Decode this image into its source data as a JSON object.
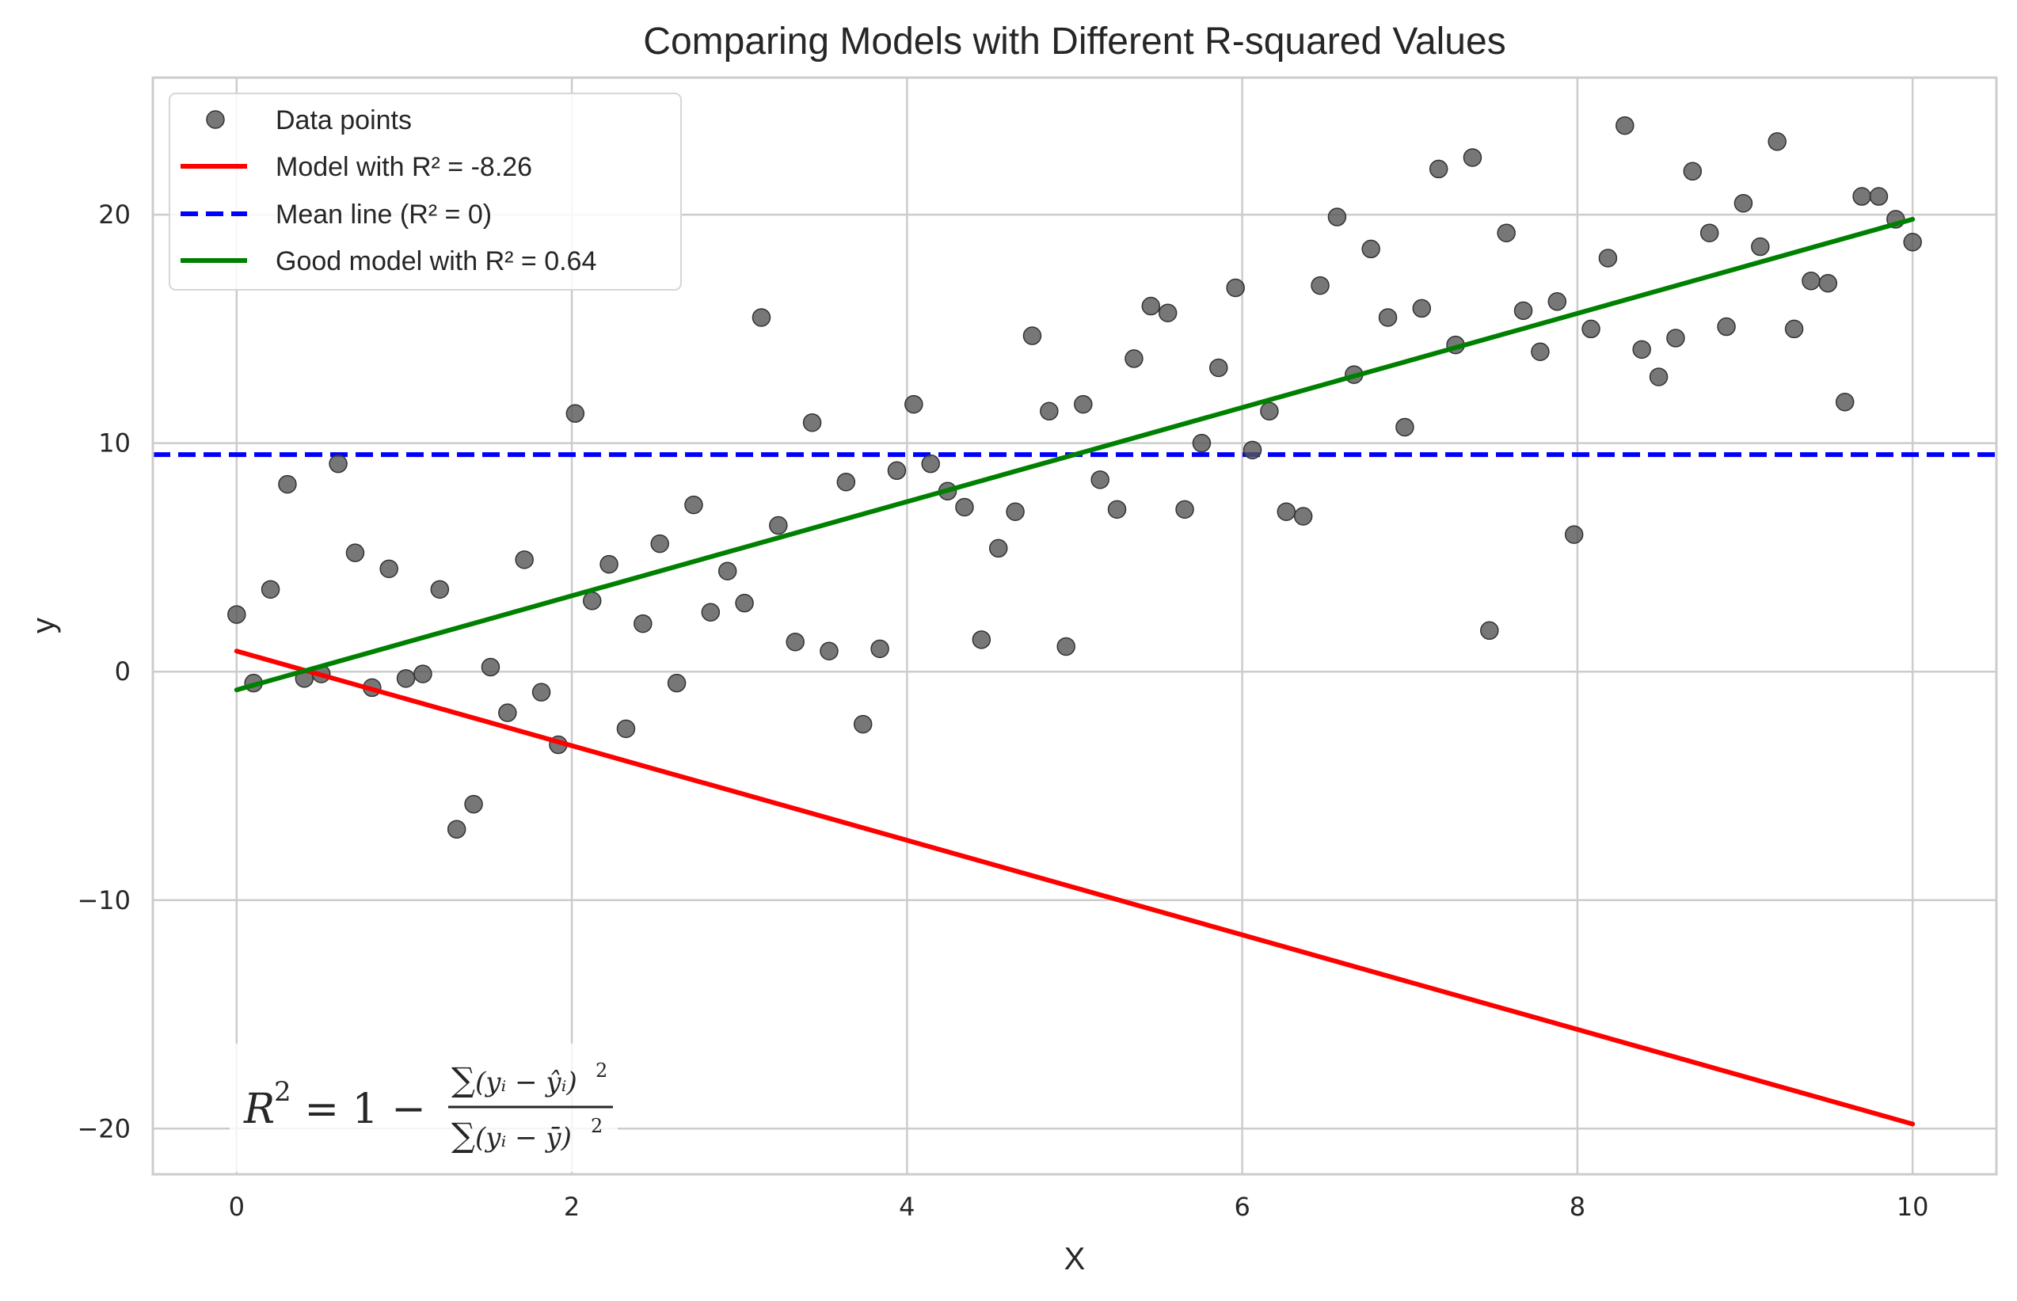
{
  "chart_data": {
    "type": "scatter",
    "title": "Comparing Models with Different R-squared Values",
    "xlabel": "X",
    "ylabel": "y",
    "xlim": [
      -0.5,
      10.5
    ],
    "ylim": [
      -22,
      26
    ],
    "xticks": [
      0,
      2,
      4,
      6,
      8,
      10
    ],
    "xtick_labels": [
      "0",
      "2",
      "4",
      "6",
      "8",
      "10"
    ],
    "yticks": [
      -20,
      -10,
      0,
      10,
      20
    ],
    "ytick_labels": [
      "−20",
      "−10",
      "0",
      "10",
      "20"
    ],
    "grid": true,
    "legend_position": "top-left",
    "series": [
      {
        "name": "Data points",
        "kind": "scatter",
        "color": "#555555",
        "x": [
          0,
          0.101,
          0.202,
          0.303,
          0.404,
          0.505,
          0.606,
          0.707,
          0.808,
          0.909,
          1.01,
          1.111,
          1.212,
          1.313,
          1.414,
          1.515,
          1.616,
          1.717,
          1.818,
          1.919,
          2.02,
          2.121,
          2.222,
          2.323,
          2.424,
          2.525,
          2.626,
          2.727,
          2.828,
          2.929,
          3.03,
          3.131,
          3.232,
          3.333,
          3.434,
          3.535,
          3.636,
          3.737,
          3.838,
          3.939,
          4.04,
          4.141,
          4.242,
          4.343,
          4.444,
          4.545,
          4.646,
          4.747,
          4.848,
          4.949,
          5.051,
          5.152,
          5.253,
          5.354,
          5.455,
          5.556,
          5.657,
          5.758,
          5.859,
          5.96,
          6.061,
          6.162,
          6.263,
          6.364,
          6.465,
          6.566,
          6.667,
          6.768,
          6.869,
          6.97,
          7.071,
          7.172,
          7.273,
          7.374,
          7.475,
          7.576,
          7.677,
          7.778,
          7.879,
          7.98,
          8.081,
          8.182,
          8.283,
          8.384,
          8.485,
          8.586,
          8.687,
          8.788,
          8.889,
          8.99,
          9.091,
          9.192,
          9.293,
          9.394,
          9.495,
          9.596,
          9.697,
          9.798,
          9.899,
          10
        ],
        "y": [
          2.5,
          -0.5,
          3.6,
          8.2,
          -0.3,
          -0.1,
          9.1,
          5.2,
          -0.7,
          4.5,
          -0.3,
          -0.1,
          3.6,
          -6.9,
          -5.8,
          0.2,
          -1.8,
          4.9,
          -0.9,
          -3.2,
          11.3,
          3.1,
          4.7,
          -2.5,
          2.1,
          5.6,
          -0.5,
          7.3,
          2.6,
          4.4,
          3.0,
          15.5,
          6.4,
          1.3,
          10.9,
          0.9,
          8.3,
          -2.3,
          1.0,
          8.8,
          11.7,
          9.1,
          7.9,
          7.2,
          1.4,
          5.4,
          7.0,
          14.7,
          11.4,
          1.1,
          11.7,
          8.4,
          7.1,
          13.7,
          16.0,
          15.7,
          7.1,
          10.0,
          13.3,
          16.8,
          9.7,
          11.4,
          7.0,
          6.8,
          16.9,
          19.9,
          13.0,
          18.5,
          15.5,
          10.7,
          15.9,
          22.0,
          14.3,
          22.5,
          1.8,
          19.2,
          15.8,
          14.0,
          16.2,
          6.0,
          15.0,
          18.1,
          23.9,
          14.1,
          12.9,
          14.6,
          21.9,
          19.2,
          15.1,
          20.5,
          18.6,
          23.2,
          15.0,
          17.1,
          17.0,
          11.8,
          20.8,
          20.8,
          19.8,
          18.8
        ]
      },
      {
        "name": "Model with R² = -8.26",
        "kind": "line",
        "color": "#ff0000",
        "dashed": false,
        "x": [
          0,
          10
        ],
        "y": [
          0.9,
          -19.8
        ]
      },
      {
        "name": "Mean line (R² = 0)",
        "kind": "hline",
        "color": "#0000ff",
        "dashed": true,
        "y": 9.5
      },
      {
        "name": "Good model with R² = 0.64",
        "kind": "line",
        "color": "#008000",
        "dashed": false,
        "x": [
          0,
          10
        ],
        "y": [
          -0.8,
          19.8
        ]
      }
    ],
    "annotation": {
      "lhs": "R",
      "lhs_sup": "2",
      "eq": " = 1 − ",
      "num_sum": "∑",
      "num_body": "(yᵢ − ŷᵢ)",
      "num_sup": "2",
      "den_sum": "∑",
      "den_body": "(yᵢ − ȳ)",
      "den_sup": "2"
    }
  }
}
